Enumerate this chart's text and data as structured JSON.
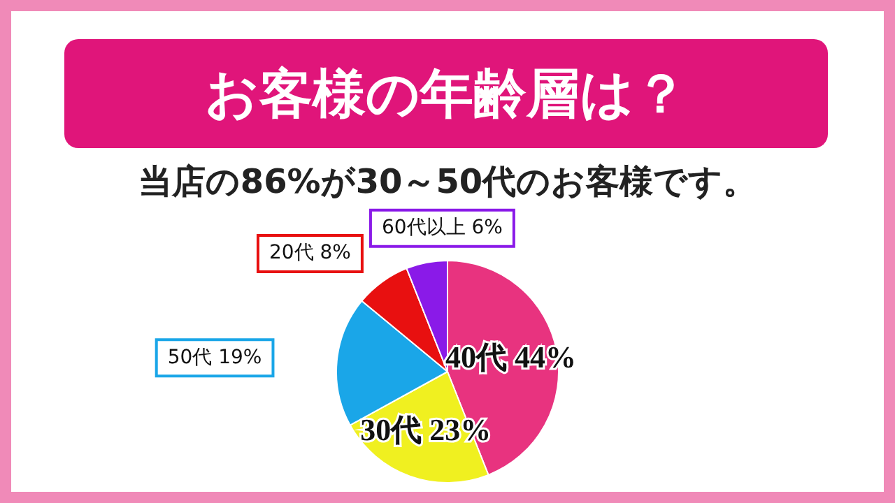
{
  "chart_data": {
    "type": "pie",
    "title": "お客様の年齢層は？",
    "subtitle": "当店の86%が30～50代のお客様です。",
    "categories": [
      "40代",
      "30代",
      "50代",
      "20代",
      "60代以上"
    ],
    "values": [
      44,
      23,
      19,
      8,
      6
    ],
    "colors": [
      "#e8337f",
      "#f0f020",
      "#1aa6e8",
      "#e81010",
      "#8a1ae8"
    ],
    "value_labels": [
      "44%",
      "23%",
      "19%",
      "8%",
      "6%"
    ],
    "legend": false
  }
}
